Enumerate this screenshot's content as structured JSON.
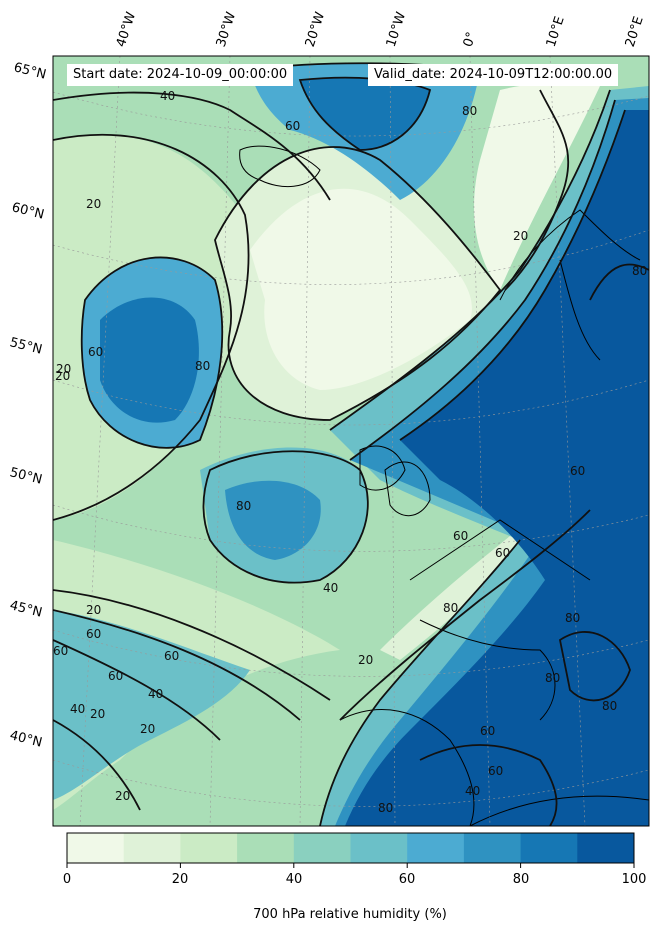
{
  "header": {
    "start_date": "Start date: 2024-10-09_00:00:00",
    "valid_date": "Valid_date: 2024-10-09T12:00:00.00"
  },
  "map": {
    "latitude_labels": [
      "65°N",
      "60°N",
      "55°N",
      "50°N",
      "45°N",
      "40°N"
    ],
    "longitude_labels": [
      "40°W",
      "30°W",
      "20°W",
      "10°W",
      "0°",
      "10°E",
      "20°E"
    ],
    "contour_labels": [
      "40",
      "60",
      "80",
      "20",
      "60",
      "80",
      "20",
      "20",
      "80",
      "60",
      "20",
      "60",
      "80",
      "40",
      "60",
      "80",
      "60",
      "20",
      "60",
      "40",
      "20",
      "20",
      "60",
      "40",
      "20",
      "60",
      "80",
      "80",
      "60",
      "40",
      "80",
      "20",
      "80",
      "60"
    ]
  },
  "colorbar": {
    "ticks": [
      "0",
      "20",
      "40",
      "60",
      "80",
      "100"
    ],
    "label": "700 hPa relative humidity (%)",
    "levels": [
      0,
      10,
      20,
      30,
      40,
      50,
      60,
      70,
      80,
      90,
      100
    ],
    "colors": [
      "#f0f9e8",
      "#dff2d8",
      "#cbebc5",
      "#aadeb7",
      "#8ad0bf",
      "#6bc0c8",
      "#4cabd2",
      "#2f92c1",
      "#1677b4",
      "#08589e"
    ]
  }
}
